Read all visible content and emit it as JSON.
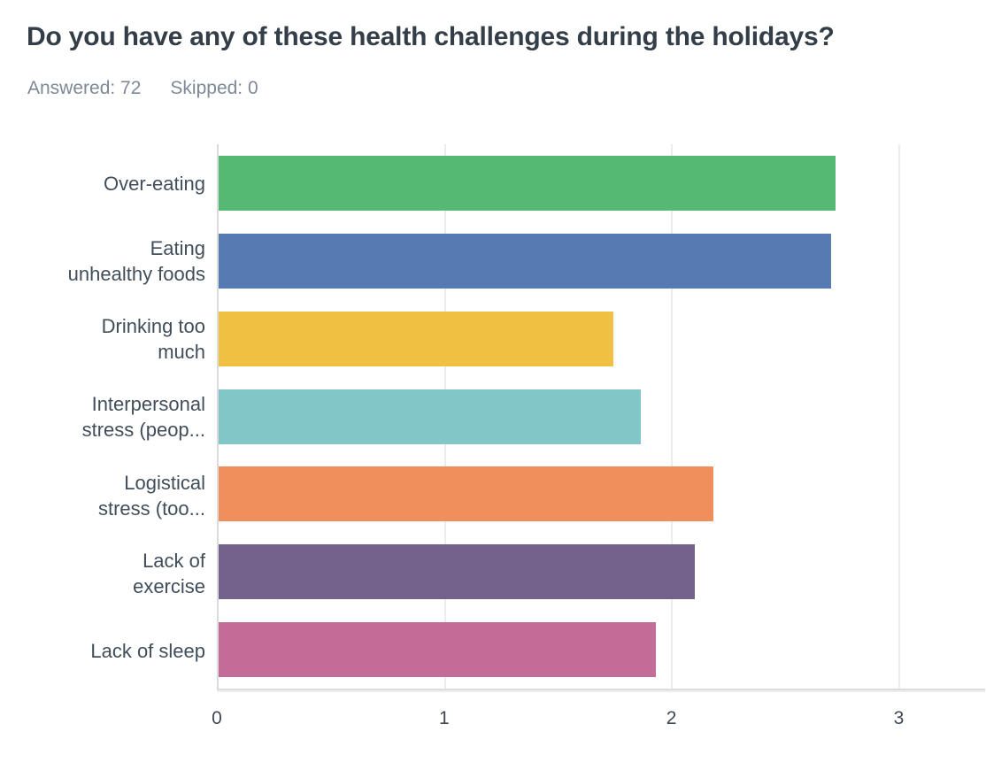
{
  "header": {
    "title": "Do you have any of these health challenges during the holidays?",
    "answered": "Answered: 72",
    "skipped": "Skipped: 0"
  },
  "colors": {
    "title_text": "#333E48",
    "stats_text": "#7D8996",
    "label_text": "#414E5A",
    "gridline": "#EBEDEE",
    "axis_line": "#D9DBDC"
  },
  "chart_data": {
    "type": "bar",
    "orientation": "horizontal",
    "title": "Do you have any of these health challenges during the holidays?",
    "answered": 72,
    "skipped": 0,
    "categories": [
      "Over-eating",
      "Eating\nunhealthy foods",
      "Drinking too\nmuch",
      "Interpersonal\nstress (peop...",
      "Logistical\nstress (too...",
      "Lack of\nexercise",
      "Lack of sleep"
    ],
    "values": [
      2.72,
      2.7,
      1.74,
      1.86,
      2.18,
      2.1,
      1.93
    ],
    "bar_colors": [
      "#55B873",
      "#567AB2",
      "#F0C042",
      "#83C6C8",
      "#F08E5C",
      "#74618C",
      "#C36C98"
    ],
    "xlabel": "",
    "ylabel": "",
    "xticks": [
      0,
      1,
      2,
      3
    ],
    "xlim": [
      0,
      3.38
    ],
    "grid": "vertical",
    "legend": "none"
  }
}
